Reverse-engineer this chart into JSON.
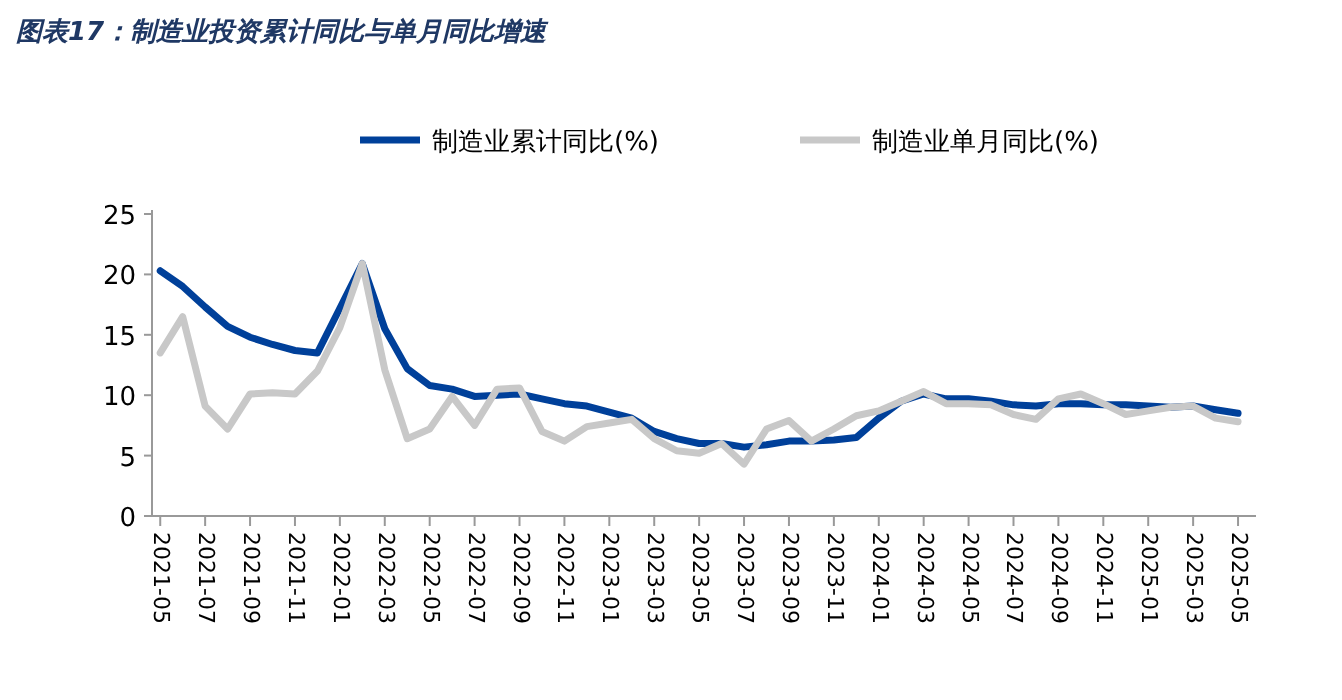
{
  "chart_data": {
    "type": "line",
    "title": "图表17：制造业投资累计同比与单月同比增速",
    "x": [
      "2021-05",
      "2021-06",
      "2021-07",
      "2021-08",
      "2021-09",
      "2021-10",
      "2021-11",
      "2021-12",
      "2022-01",
      "2022-02",
      "2022-03",
      "2022-04",
      "2022-05",
      "2022-06",
      "2022-07",
      "2022-08",
      "2022-09",
      "2022-10",
      "2022-11",
      "2022-12",
      "2023-01",
      "2023-02",
      "2023-03",
      "2023-04",
      "2023-05",
      "2023-06",
      "2023-07",
      "2023-08",
      "2023-09",
      "2023-10",
      "2023-11",
      "2023-12",
      "2024-01",
      "2024-02",
      "2024-03",
      "2024-04",
      "2024-05",
      "2024-06",
      "2024-07",
      "2024-08",
      "2024-09",
      "2024-10",
      "2024-11",
      "2024-12",
      "2025-01",
      "2025-02",
      "2025-03",
      "2025-04",
      "2025-05"
    ],
    "series": [
      {
        "name": "制造业累计同比(%)",
        "color": "#00409a",
        "values": [
          20.3,
          19.0,
          17.3,
          15.7,
          14.8,
          14.2,
          13.7,
          13.5,
          17.2,
          20.9,
          15.5,
          12.2,
          10.8,
          10.5,
          9.9,
          10.0,
          10.1,
          9.7,
          9.3,
          9.1,
          8.6,
          8.1,
          7.0,
          6.4,
          6.0,
          6.0,
          5.7,
          5.9,
          6.2,
          6.2,
          6.3,
          6.5,
          8.1,
          9.5,
          10.1,
          9.7,
          9.7,
          9.5,
          9.2,
          9.1,
          9.3,
          9.3,
          9.2,
          9.2,
          9.1,
          9.0,
          9.1,
          8.8,
          8.5
        ]
      },
      {
        "name": "制造业单月同比(%)",
        "color": "#c8c8c8",
        "values": [
          13.5,
          16.5,
          9.1,
          7.2,
          10.1,
          10.2,
          10.1,
          12.0,
          15.6,
          20.9,
          12.1,
          6.4,
          7.2,
          9.9,
          7.5,
          10.5,
          10.6,
          7.0,
          6.2,
          7.4,
          7.7,
          8.0,
          6.4,
          5.4,
          5.2,
          6.0,
          4.3,
          7.2,
          7.9,
          6.2,
          7.2,
          8.3,
          8.7,
          9.5,
          10.3,
          9.3,
          9.3,
          9.2,
          8.4,
          8.0,
          9.7,
          10.1,
          9.3,
          8.4,
          8.7,
          9.0,
          9.1,
          8.1,
          7.8
        ]
      }
    ],
    "xlim": [
      "2021-04-20",
      "2025-05-25"
    ],
    "xticks": [
      "2021-05",
      "2021-07",
      "2021-09",
      "2021-11",
      "2022-01",
      "2022-03",
      "2022-05",
      "2022-07",
      "2022-09",
      "2022-11",
      "2023-01",
      "2023-03",
      "2023-05",
      "2023-07",
      "2023-09",
      "2023-11",
      "2024-01",
      "2024-03",
      "2024-05",
      "2024-07",
      "2024-09",
      "2024-11",
      "2025-01",
      "2025-03",
      "2025-05"
    ],
    "ylim": [
      0,
      25
    ],
    "yticks": [
      0,
      5,
      10,
      15,
      20,
      25
    ],
    "legend": "top",
    "grid": false,
    "marker": "none",
    "line_style": "solid"
  }
}
